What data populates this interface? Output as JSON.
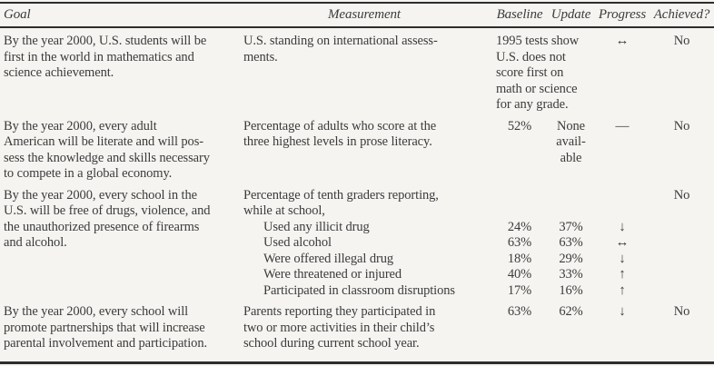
{
  "colors": {
    "paper": "#f5f4f1",
    "ink": "#3b3b3b",
    "rule": "#2d2d2d"
  },
  "table": {
    "headers": {
      "goal": "Goal",
      "measurement": "Measurement",
      "baseline": "Baseline",
      "update": "Update",
      "progress": "Progress",
      "achieved": "Achieved?"
    },
    "rows": [
      {
        "goal": "By the year 2000, U.S. students will be\nfirst in the world in mathematics and\nscience achievement.",
        "measurement": "U.S. standing on international assess-\nments.",
        "baseline_update": "1995 tests show\nU.S. does not\nscore first on\nmath or science\nfor any grade.",
        "progress": "↔",
        "achieved": "No"
      },
      {
        "goal": "By the year 2000, every adult\nAmerican will be literate and will pos-\nsess the knowledge and skills necessary\nto compete in a global economy.",
        "measurement": "Percentage of adults who score at the\nthree highest levels in prose literacy.",
        "baseline": "52%",
        "update": "None\navail-\nable",
        "progress": "—",
        "achieved": "No"
      },
      {
        "goal": "By the year 2000, every school in the\nU.S. will be free of drugs, violence, and\nthe unauthorized presence of firearms\nand alcohol.",
        "measurement_intro": "Percentage of tenth graders reporting,\nwhile at school,",
        "achieved": "No",
        "sub_items": [
          {
            "label": "Used any illicit drug",
            "baseline": "24%",
            "update": "37%",
            "progress": "↓"
          },
          {
            "label": "Used alcohol",
            "baseline": "63%",
            "update": "63%",
            "progress": "↔"
          },
          {
            "label": "Were offered illegal drug",
            "baseline": "18%",
            "update": "29%",
            "progress": "↓"
          },
          {
            "label": "Were threatened or injured",
            "baseline": "40%",
            "update": "33%",
            "progress": "↑"
          },
          {
            "label": "Participated in classroom disruptions",
            "baseline": "17%",
            "update": "16%",
            "progress": "↑"
          }
        ]
      },
      {
        "goal": "By the year 2000, every school will\npromote partnerships that will increase\nparental involvement and participation.",
        "measurement": "Parents reporting they participated in\ntwo or more activities in their child’s\nschool during current school year.",
        "baseline": "63%",
        "update": "62%",
        "progress": "↓",
        "achieved": "No"
      }
    ]
  }
}
